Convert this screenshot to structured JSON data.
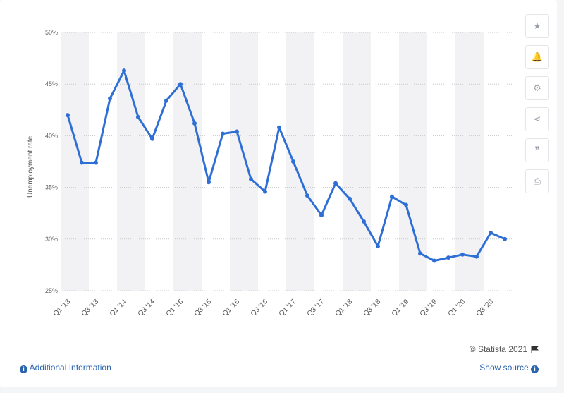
{
  "chart_data": {
    "type": "line",
    "ylabel": "Unemployment rate",
    "xlabel": "",
    "ylim": [
      25,
      50
    ],
    "y_ticks": [
      "50%",
      "45%",
      "40%",
      "35%",
      "30%",
      "25%"
    ],
    "x_tick_labels": [
      "Q1 '13",
      "Q3 '13",
      "Q1 '14",
      "Q3 '14",
      "Q1 '15",
      "Q3 '15",
      "Q1 '16",
      "Q3 '16",
      "Q1 '17",
      "Q3 '17",
      "Q1 '18",
      "Q3 '18",
      "Q1 '19",
      "Q3 '19",
      "Q1 '20",
      "Q3 '20"
    ],
    "categories": [
      "Q1 '13",
      "Q2 '13",
      "Q3 '13",
      "Q4 '13",
      "Q1 '14",
      "Q2 '14",
      "Q3 '14",
      "Q4 '14",
      "Q1 '15",
      "Q2 '15",
      "Q3 '15",
      "Q4 '15",
      "Q1 '16",
      "Q2 '16",
      "Q3 '16",
      "Q4 '16",
      "Q1 '17",
      "Q2 '17",
      "Q3 '17",
      "Q4 '17",
      "Q1 '18",
      "Q2 '18",
      "Q3 '18",
      "Q4 '18",
      "Q1 '19",
      "Q2 '19",
      "Q3 '19",
      "Q4 '19",
      "Q1 '20",
      "Q2 '20",
      "Q3 '20",
      "Q4 '20"
    ],
    "values": [
      42.0,
      37.4,
      37.4,
      43.6,
      46.3,
      41.8,
      39.7,
      43.4,
      45.0,
      41.2,
      35.5,
      40.2,
      40.4,
      35.8,
      34.6,
      40.8,
      37.5,
      34.2,
      32.3,
      35.4,
      33.9,
      31.7,
      29.3,
      34.1,
      33.3,
      28.6,
      27.9,
      28.2,
      28.5,
      28.3,
      30.6,
      30.0
    ],
    "colors": {
      "line": "#2e6fd6",
      "grid": "#c8c8c8",
      "band": "#f2f2f4"
    },
    "grid": true
  },
  "sidebar": {
    "icons": [
      "star-icon",
      "bell-icon",
      "gear-icon",
      "share-icon",
      "quote-icon",
      "print-icon"
    ],
    "glyphs": [
      "★",
      "🔔",
      "⚙",
      "⋖",
      "❞",
      "⎙"
    ]
  },
  "footer": {
    "credit": "© Statista 2021",
    "additional_info": "Additional Information",
    "show_source": "Show source"
  }
}
